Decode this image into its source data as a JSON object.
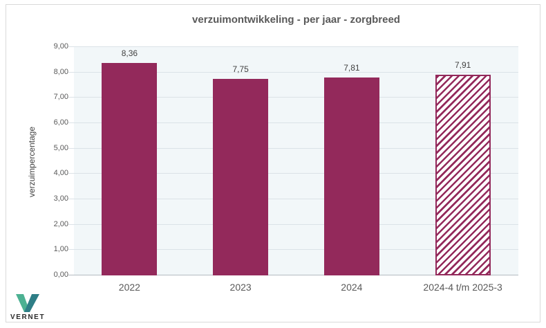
{
  "title": "verzuimontwikkeling - per jaar - zorgbreed",
  "chart_data": {
    "type": "bar",
    "title": "verzuimontwikkeling - per jaar - zorgbreed",
    "categories": [
      "2022",
      "2023",
      "2024",
      "2024-4 t/m 2025-3"
    ],
    "values": [
      8.36,
      7.75,
      7.81,
      7.91
    ],
    "value_labels": [
      "8,36",
      "7,75",
      "7,81",
      "7,91"
    ],
    "hatched": [
      false,
      false,
      false,
      true
    ],
    "xlabel": "",
    "ylabel": "verzuimpercentage",
    "ylim": [
      0,
      9
    ],
    "ytick_step": 1,
    "ytick_labels": [
      "0,00",
      "1,00",
      "2,00",
      "3,00",
      "4,00",
      "5,00",
      "6,00",
      "7,00",
      "8,00",
      "9,00"
    ],
    "grid": true,
    "legend": "none",
    "colors": {
      "bar": "#93295B",
      "plot_bg": "#F2F7F9",
      "gridline": "#DBE2E7",
      "axis_line": "#B3BAC0",
      "title_text": "#595959",
      "tick_text": "#595959",
      "value_text": "#404040"
    }
  },
  "logo": {
    "text": "VERNET",
    "mark_color_dark": "#2E7E86",
    "mark_color_light": "#4CB192"
  }
}
